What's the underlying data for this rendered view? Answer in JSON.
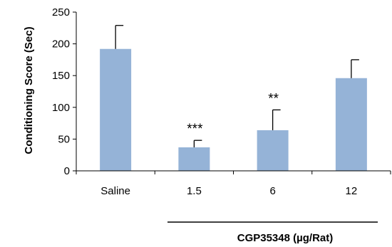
{
  "chart_data": {
    "type": "bar",
    "categories": [
      "Saline",
      "1.5",
      "6",
      "12"
    ],
    "values": [
      192,
      37,
      64,
      146
    ],
    "error_bars": [
      37,
      11,
      32,
      29
    ],
    "annotations": [
      "",
      "***",
      "**",
      ""
    ],
    "ylabel": "Conditioning Score (Sec)",
    "group_label": "CGP35348 (µg/Rat)",
    "ylim": [
      0,
      250
    ],
    "yticks": [
      0,
      50,
      100,
      150,
      200,
      250
    ],
    "bar_color": "#95b3d7",
    "grid": false
  }
}
